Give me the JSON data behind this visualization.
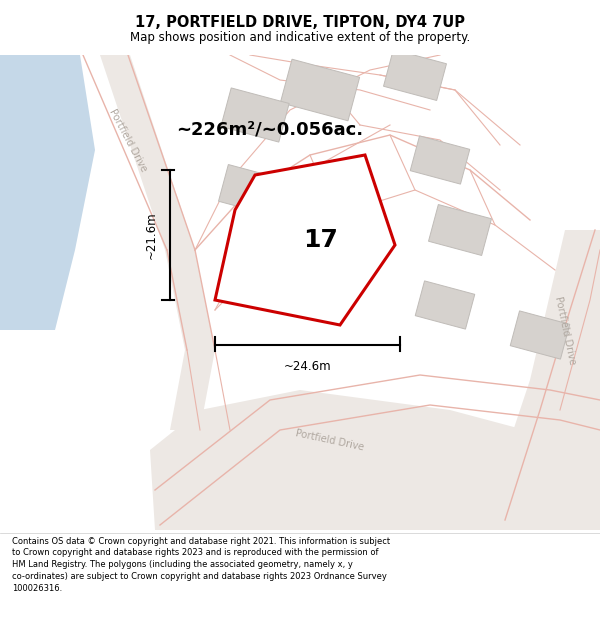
{
  "title": "17, PORTFIELD DRIVE, TIPTON, DY4 7UP",
  "subtitle": "Map shows position and indicative extent of the property.",
  "footer": "Contains OS data © Crown copyright and database right 2021. This information is subject\nto Crown copyright and database rights 2023 and is reproduced with the permission of\nHM Land Registry. The polygons (including the associated geometry, namely x, y\nco-ordinates) are subject to Crown copyright and database rights 2023 Ordnance Survey\n100026316.",
  "area_label": "~226m²/~0.056ac.",
  "width_label": "~24.6m",
  "height_label": "~21.6m",
  "plot_number": "17",
  "map_bg": "#f2efec",
  "road_fill": "#ede8e4",
  "road_line": "#e8b4aa",
  "building_color": "#d6d2ce",
  "building_edge": "#c0bcb8",
  "plot_fill": "#ffffff",
  "plot_edge": "#cc0000",
  "water_color": "#c5d8e8",
  "dim_color": "#000000",
  "text_color": "#000000",
  "road_label_color": "#b0a8a0"
}
